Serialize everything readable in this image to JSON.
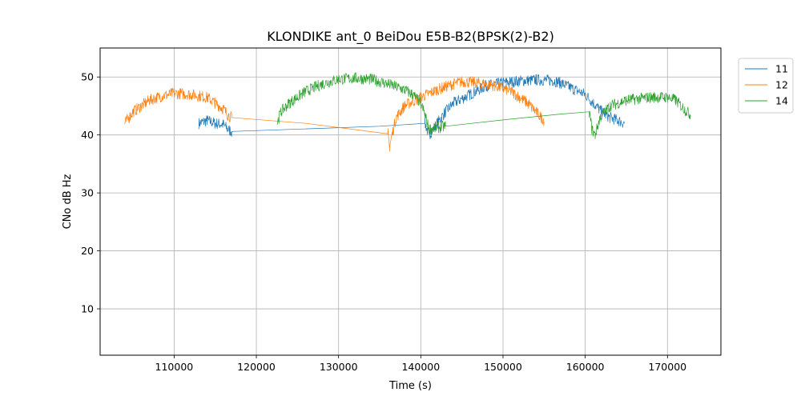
{
  "chart_data": {
    "type": "line",
    "title": "KLONDIKE ant_0 BeiDou E5B-B2(BPSK(2)-B2)",
    "xlabel": "Time (s)",
    "ylabel": "CNo dB Hz",
    "xlim": [
      101000,
      176500
    ],
    "ylim": [
      2,
      55
    ],
    "xticks": [
      110000,
      120000,
      130000,
      140000,
      150000,
      160000,
      170000
    ],
    "yticks": [
      10,
      20,
      30,
      40,
      50
    ],
    "grid": true,
    "legend_position": "outside-top-right",
    "series": [
      {
        "name": "11",
        "color": "#1f77b4",
        "points": [
          [
            113000,
            42
          ],
          [
            114000,
            42.5
          ],
          [
            115000,
            42
          ],
          [
            116000,
            41.8
          ],
          [
            116500,
            41
          ],
          [
            117000,
            40.6
          ],
          [
            125000,
            41
          ],
          [
            135000,
            41.5
          ],
          [
            140500,
            42
          ],
          [
            141000,
            40
          ],
          [
            142000,
            42
          ],
          [
            143000,
            44
          ],
          [
            144000,
            45.5
          ],
          [
            146000,
            47
          ],
          [
            148000,
            48.5
          ],
          [
            150000,
            49
          ],
          [
            152000,
            49.3
          ],
          [
            154000,
            49.5
          ],
          [
            156000,
            49.4
          ],
          [
            157000,
            49
          ],
          [
            158000,
            48.3
          ],
          [
            160000,
            47
          ],
          [
            161000,
            45.5
          ],
          [
            162000,
            44
          ],
          [
            163000,
            43
          ],
          [
            164000,
            42.5
          ],
          [
            164800,
            42
          ]
        ]
      },
      {
        "name": "12",
        "color": "#ff7f0e",
        "points": [
          [
            104000,
            42
          ],
          [
            104500,
            43
          ],
          [
            105000,
            44
          ],
          [
            106000,
            45
          ],
          [
            107000,
            46
          ],
          [
            108000,
            46.5
          ],
          [
            110000,
            47.2
          ],
          [
            112000,
            47
          ],
          [
            114000,
            46.5
          ],
          [
            115000,
            45.5
          ],
          [
            116000,
            44.5
          ],
          [
            116500,
            43.5
          ],
          [
            117000,
            43
          ],
          [
            126000,
            42
          ],
          [
            136000,
            40.2
          ],
          [
            136200,
            38
          ],
          [
            136500,
            40
          ],
          [
            137000,
            43
          ],
          [
            138000,
            45
          ],
          [
            140000,
            46.5
          ],
          [
            142000,
            47.8
          ],
          [
            144000,
            48.8
          ],
          [
            145000,
            49.2
          ],
          [
            147000,
            49
          ],
          [
            149000,
            48.5
          ],
          [
            151000,
            47.5
          ],
          [
            152000,
            46.5
          ],
          [
            153000,
            45.5
          ],
          [
            154000,
            44
          ],
          [
            155000,
            42.5
          ]
        ]
      },
      {
        "name": "14",
        "color": "#2ca02c",
        "points": [
          [
            122500,
            42
          ],
          [
            123000,
            44
          ],
          [
            124000,
            45.5
          ],
          [
            125000,
            46.5
          ],
          [
            126000,
            47.5
          ],
          [
            128000,
            48.8
          ],
          [
            130000,
            49.6
          ],
          [
            132000,
            49.8
          ],
          [
            134000,
            49.6
          ],
          [
            136000,
            48.8
          ],
          [
            138000,
            47.8
          ],
          [
            139000,
            47
          ],
          [
            140000,
            45.5
          ],
          [
            140500,
            43.5
          ],
          [
            141000,
            41
          ],
          [
            143000,
            41.5
          ],
          [
            150000,
            42.6
          ],
          [
            157000,
            43.6
          ],
          [
            160500,
            44
          ],
          [
            160800,
            41
          ],
          [
            161200,
            40
          ],
          [
            161800,
            43
          ],
          [
            163000,
            45
          ],
          [
            165000,
            46
          ],
          [
            168000,
            46.5
          ],
          [
            170000,
            46.5
          ],
          [
            171000,
            46
          ],
          [
            172000,
            44.5
          ],
          [
            172800,
            43.5
          ]
        ]
      }
    ]
  }
}
